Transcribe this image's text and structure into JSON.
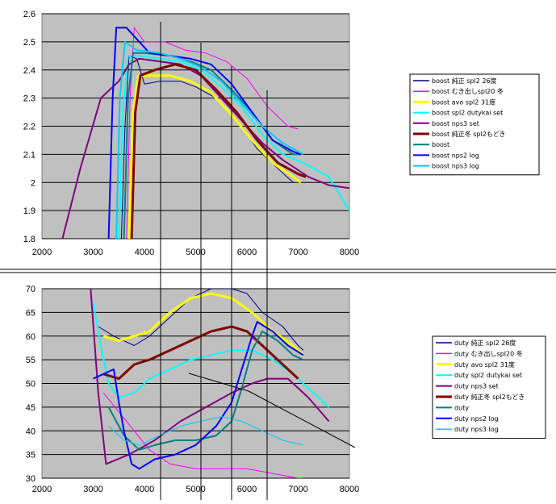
{
  "colors": {
    "plot_bg": "#c0c0c0",
    "grid": "#000000",
    "axis_text": "#000000",
    "legend_border": "#000000"
  },
  "chart_data": [
    {
      "type": "line",
      "x_ticks": [
        "2000",
        "3000",
        "4000",
        "5000",
        "6000",
        "7000",
        "8000"
      ],
      "y_ticks": [
        "2.6",
        "2.5",
        "2.4",
        "2.3",
        "2.2",
        "2.1",
        "2",
        "1.9",
        "1.8"
      ],
      "xlim": [
        2000,
        8000
      ],
      "ylim": [
        1.8,
        2.6
      ],
      "legend_position": "right",
      "series": [
        {
          "name": "boost 純正 spl2 26度",
          "color": "#000080",
          "width": 1,
          "points": [
            [
              3550,
              1.8
            ],
            [
              3620,
              2.2
            ],
            [
              3700,
              2.45
            ],
            [
              3850,
              2.44
            ],
            [
              4000,
              2.35
            ],
            [
              4300,
              2.36
            ],
            [
              4700,
              2.36
            ],
            [
              5000,
              2.34
            ],
            [
              5400,
              2.3
            ],
            [
              5800,
              2.22
            ],
            [
              6200,
              2.12
            ],
            [
              6600,
              2.05
            ],
            [
              6900,
              2.0
            ]
          ]
        },
        {
          "name": "boost むき出しspl20 冬",
          "color": "#ff00ff",
          "width": 1,
          "points": [
            [
              3650,
              1.8
            ],
            [
              3720,
              2.3
            ],
            [
              3800,
              2.55
            ],
            [
              4000,
              2.5
            ],
            [
              4400,
              2.5
            ],
            [
              4800,
              2.47
            ],
            [
              5200,
              2.46
            ],
            [
              5600,
              2.43
            ],
            [
              6000,
              2.37
            ],
            [
              6400,
              2.27
            ],
            [
              6800,
              2.2
            ],
            [
              7000,
              2.19
            ]
          ]
        },
        {
          "name": "boost avo spl2 31度",
          "color": "#ffff00",
          "width": 3,
          "points": [
            [
              3700,
              1.8
            ],
            [
              3780,
              2.25
            ],
            [
              3880,
              2.38
            ],
            [
              4100,
              2.38
            ],
            [
              4500,
              2.38
            ],
            [
              4900,
              2.36
            ],
            [
              5300,
              2.32
            ],
            [
              5700,
              2.24
            ],
            [
              6100,
              2.15
            ],
            [
              6500,
              2.07
            ],
            [
              6900,
              2.02
            ],
            [
              7050,
              2.0
            ]
          ]
        },
        {
          "name": "boost spl2 dutykai set",
          "color": "#00ffff",
          "width": 2,
          "points": [
            [
              3500,
              1.8
            ],
            [
              3580,
              2.25
            ],
            [
              3680,
              2.45
            ],
            [
              3900,
              2.45
            ],
            [
              4300,
              2.44
            ],
            [
              4700,
              2.43
            ],
            [
              5100,
              2.4
            ],
            [
              5500,
              2.34
            ],
            [
              5900,
              2.27
            ],
            [
              6300,
              2.17
            ],
            [
              6700,
              2.1
            ],
            [
              7100,
              2.07
            ],
            [
              7600,
              2.02
            ],
            [
              8000,
              1.9
            ]
          ]
        },
        {
          "name": "boost nps3 set",
          "color": "#800080",
          "width": 2,
          "points": [
            [
              2400,
              1.8
            ],
            [
              2750,
              2.05
            ],
            [
              3150,
              2.3
            ],
            [
              3500,
              2.36
            ],
            [
              3700,
              2.42
            ],
            [
              3900,
              2.44
            ],
            [
              4300,
              2.43
            ],
            [
              4700,
              2.42
            ],
            [
              5100,
              2.38
            ],
            [
              5500,
              2.3
            ],
            [
              5900,
              2.22
            ],
            [
              6300,
              2.14
            ],
            [
              6700,
              2.08
            ],
            [
              7200,
              2.02
            ],
            [
              7600,
              1.99
            ],
            [
              8000,
              1.98
            ]
          ]
        },
        {
          "name": "boost 純正冬 spl2もどき",
          "color": "#800000",
          "width": 3,
          "points": [
            [
              3750,
              1.8
            ],
            [
              3820,
              2.25
            ],
            [
              3920,
              2.38
            ],
            [
              4200,
              2.4
            ],
            [
              4600,
              2.42
            ],
            [
              5000,
              2.4
            ],
            [
              5400,
              2.33
            ],
            [
              5800,
              2.25
            ],
            [
              6200,
              2.15
            ],
            [
              6600,
              2.07
            ],
            [
              7000,
              2.03
            ],
            [
              7150,
              2.02
            ]
          ]
        },
        {
          "name": "boost",
          "color": "#008080",
          "width": 2,
          "points": [
            [
              3600,
              1.8
            ],
            [
              3680,
              2.3
            ],
            [
              3780,
              2.46
            ],
            [
              4000,
              2.46
            ],
            [
              4500,
              2.45
            ],
            [
              4900,
              2.43
            ],
            [
              5300,
              2.4
            ],
            [
              5700,
              2.33
            ],
            [
              6100,
              2.25
            ],
            [
              6500,
              2.15
            ],
            [
              6900,
              2.1
            ],
            [
              7050,
              2.1
            ]
          ]
        },
        {
          "name": "boost nps2 log",
          "color": "#0000ff",
          "width": 2,
          "points": [
            [
              3300,
              1.8
            ],
            [
              3380,
              2.3
            ],
            [
              3450,
              2.55
            ],
            [
              3650,
              2.55
            ],
            [
              3800,
              2.52
            ],
            [
              4100,
              2.46
            ],
            [
              4500,
              2.45
            ],
            [
              4900,
              2.44
            ],
            [
              5300,
              2.42
            ],
            [
              5700,
              2.35
            ],
            [
              6100,
              2.25
            ],
            [
              6500,
              2.15
            ],
            [
              6900,
              2.11
            ],
            [
              7050,
              2.1
            ]
          ]
        },
        {
          "name": "boost nps3 log",
          "color": "#00ccff",
          "width": 2,
          "points": [
            [
              3450,
              1.8
            ],
            [
              3520,
              2.3
            ],
            [
              3620,
              2.5
            ],
            [
              3850,
              2.47
            ],
            [
              4300,
              2.46
            ],
            [
              4700,
              2.44
            ],
            [
              5100,
              2.41
            ],
            [
              5500,
              2.36
            ],
            [
              5900,
              2.28
            ],
            [
              6300,
              2.2
            ],
            [
              6700,
              2.14
            ],
            [
              7100,
              2.1
            ]
          ]
        }
      ]
    },
    {
      "type": "line",
      "x_ticks": [
        "2000",
        "3000",
        "4000",
        "5000",
        "6000",
        "7000",
        "8000"
      ],
      "y_ticks": [
        "70",
        "65",
        "60",
        "55",
        "50",
        "45",
        "40",
        "35",
        "30"
      ],
      "xlim": [
        2000,
        8000
      ],
      "ylim": [
        30,
        70
      ],
      "legend_position": "right",
      "series": [
        {
          "name": "duty 純正 spl2 26度",
          "color": "#000080",
          "width": 1,
          "points": [
            [
              3100,
              62
            ],
            [
              3400,
              60
            ],
            [
              3800,
              58
            ],
            [
              4100,
              60
            ],
            [
              4500,
              64
            ],
            [
              4900,
              68
            ],
            [
              5300,
              70
            ],
            [
              5700,
              70
            ],
            [
              6000,
              69
            ],
            [
              6300,
              65
            ],
            [
              6700,
              62
            ],
            [
              7000,
              58
            ],
            [
              7100,
              57
            ]
          ]
        },
        {
          "name": "duty むき出しspl20 冬",
          "color": "#ff00ff",
          "width": 1,
          "points": [
            [
              3200,
              48
            ],
            [
              3500,
              44
            ],
            [
              3800,
              40
            ],
            [
              4100,
              36
            ],
            [
              4500,
              33
            ],
            [
              5000,
              32
            ],
            [
              5500,
              32
            ],
            [
              6000,
              32
            ],
            [
              6500,
              31
            ],
            [
              7000,
              30
            ],
            [
              7100,
              30
            ]
          ]
        },
        {
          "name": "duty avo spl2 31度",
          "color": "#ffff00",
          "width": 3,
          "points": [
            [
              3200,
              60
            ],
            [
              3500,
              59
            ],
            [
              3800,
              60
            ],
            [
              4100,
              61
            ],
            [
              4500,
              65
            ],
            [
              4900,
              68
            ],
            [
              5300,
              69
            ],
            [
              5700,
              68
            ],
            [
              6100,
              65
            ],
            [
              6500,
              61
            ],
            [
              6900,
              58
            ],
            [
              7100,
              56
            ]
          ]
        },
        {
          "name": "duty spl2 dutykai set",
          "color": "#00ffff",
          "width": 2,
          "points": [
            [
              3000,
              67
            ],
            [
              3150,
              58
            ],
            [
              3300,
              50
            ],
            [
              3500,
              47
            ],
            [
              3800,
              48
            ],
            [
              4100,
              51
            ],
            [
              4500,
              53
            ],
            [
              4900,
              55
            ],
            [
              5300,
              56
            ],
            [
              5700,
              57
            ],
            [
              6100,
              57
            ],
            [
              6500,
              55
            ],
            [
              6900,
              52
            ],
            [
              7300,
              48
            ],
            [
              7600,
              45
            ]
          ]
        },
        {
          "name": "duty nps3 set",
          "color": "#800080",
          "width": 2,
          "points": [
            [
              2950,
              70
            ],
            [
              3100,
              48
            ],
            [
              3250,
              33
            ],
            [
              3700,
              35
            ],
            [
              4200,
              38
            ],
            [
              4700,
              42
            ],
            [
              5200,
              45
            ],
            [
              5700,
              48
            ],
            [
              6100,
              50
            ],
            [
              6400,
              51
            ],
            [
              6800,
              51
            ],
            [
              7200,
              47
            ],
            [
              7600,
              42
            ]
          ]
        },
        {
          "name": "duty 純正冬 spl2もどき",
          "color": "#800000",
          "width": 3,
          "points": [
            [
              3200,
              52
            ],
            [
              3500,
              51
            ],
            [
              3800,
              54
            ],
            [
              4100,
              55
            ],
            [
              4500,
              57
            ],
            [
              4900,
              59
            ],
            [
              5300,
              61
            ],
            [
              5700,
              62
            ],
            [
              6000,
              61
            ],
            [
              6300,
              58
            ],
            [
              6700,
              54
            ],
            [
              7000,
              51
            ]
          ]
        },
        {
          "name": "duty",
          "color": "#008080",
          "width": 2,
          "points": [
            [
              3300,
              45
            ],
            [
              3600,
              39
            ],
            [
              3900,
              36
            ],
            [
              4200,
              37
            ],
            [
              4600,
              38
            ],
            [
              5000,
              38
            ],
            [
              5400,
              39
            ],
            [
              5700,
              42
            ],
            [
              5900,
              49
            ],
            [
              6100,
              57
            ],
            [
              6300,
              61
            ],
            [
              6600,
              59
            ],
            [
              6900,
              56
            ],
            [
              7100,
              55
            ]
          ]
        },
        {
          "name": "duty nps2 log",
          "color": "#0000ff",
          "width": 2,
          "points": [
            [
              3000,
              51
            ],
            [
              3200,
              52
            ],
            [
              3400,
              53
            ],
            [
              3500,
              46
            ],
            [
              3600,
              40
            ],
            [
              3750,
              33
            ],
            [
              3900,
              32
            ],
            [
              4200,
              34
            ],
            [
              4600,
              35
            ],
            [
              5000,
              37
            ],
            [
              5400,
              41
            ],
            [
              5700,
              46
            ],
            [
              5900,
              53
            ],
            [
              6100,
              60
            ],
            [
              6200,
              63
            ],
            [
              6500,
              61
            ],
            [
              6800,
              58
            ],
            [
              7100,
              56
            ]
          ]
        },
        {
          "name": "duty nps3 log",
          "color": "#00ccff",
          "width": 1,
          "points": [
            [
              3300,
              41
            ],
            [
              3600,
              38
            ],
            [
              3900,
              37
            ],
            [
              4300,
              39
            ],
            [
              4700,
              41
            ],
            [
              5100,
              42
            ],
            [
              5500,
              43
            ],
            [
              5900,
              42
            ],
            [
              6300,
              40
            ],
            [
              6700,
              38
            ],
            [
              7100,
              37
            ]
          ]
        }
      ]
    }
  ]
}
